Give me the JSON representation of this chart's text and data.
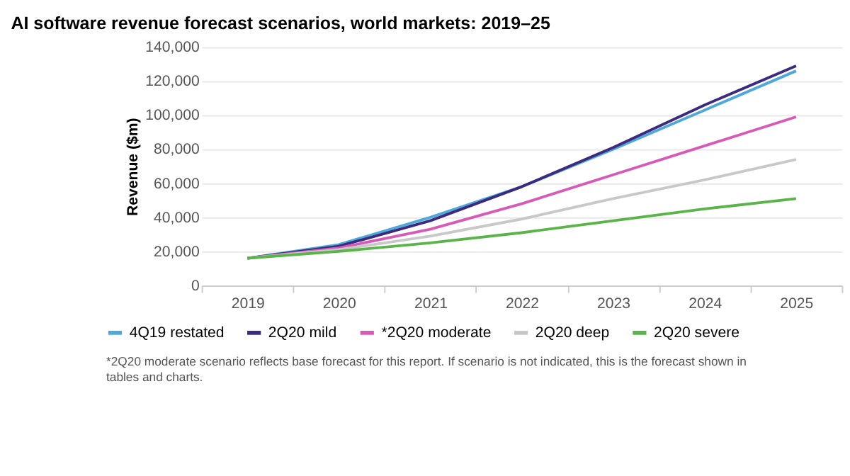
{
  "chart_data": {
    "type": "line",
    "title": "AI software revenue forecast scenarios, world markets: 2019–25",
    "ylabel": "Revenue ($m)",
    "categories": [
      "2019",
      "2020",
      "2021",
      "2022",
      "2023",
      "2024",
      "2025"
    ],
    "series": [
      {
        "name": "4Q19 restated",
        "color": "#4fa8d8",
        "values": [
          16000,
          24000,
          40000,
          58000,
          80000,
          103000,
          126000
        ]
      },
      {
        "name": "2Q20 mild",
        "color": "#3b2a7e",
        "values": [
          16000,
          23000,
          38000,
          58000,
          81000,
          106000,
          129000
        ]
      },
      {
        "name": "*2Q20 moderate",
        "color": "#d65bb8",
        "values": [
          16000,
          22000,
          33000,
          48000,
          65000,
          82000,
          99000
        ]
      },
      {
        "name": "2Q20 deep",
        "color": "#c8c8c8",
        "values": [
          16000,
          21000,
          29000,
          39000,
          51000,
          62000,
          74000
        ]
      },
      {
        "name": "2Q20 severe",
        "color": "#5ab44a",
        "values": [
          16000,
          20000,
          25000,
          31000,
          38000,
          45000,
          51000
        ]
      }
    ],
    "ylim": [
      0,
      140000
    ],
    "yticks": [
      0,
      {
        "value": 20000,
        "label": "20,000"
      },
      {
        "value": 40000,
        "label": "40,000"
      },
      {
        "value": 60000,
        "label": "60,000"
      },
      {
        "value": 80000,
        "label": "80,000"
      },
      {
        "value": 100000,
        "label": "100,000"
      },
      {
        "value": 120000,
        "label": "120,000"
      },
      {
        "value": 140000,
        "label": "140,000"
      }
    ],
    "grid": "y",
    "legend": "bottom",
    "marker": "none",
    "line_style": "solid",
    "annotations": [
      "*2Q20 moderate scenario reflects base forecast for this report. If scenario is not indicated, this is the forecast shown in tables and charts."
    ]
  }
}
